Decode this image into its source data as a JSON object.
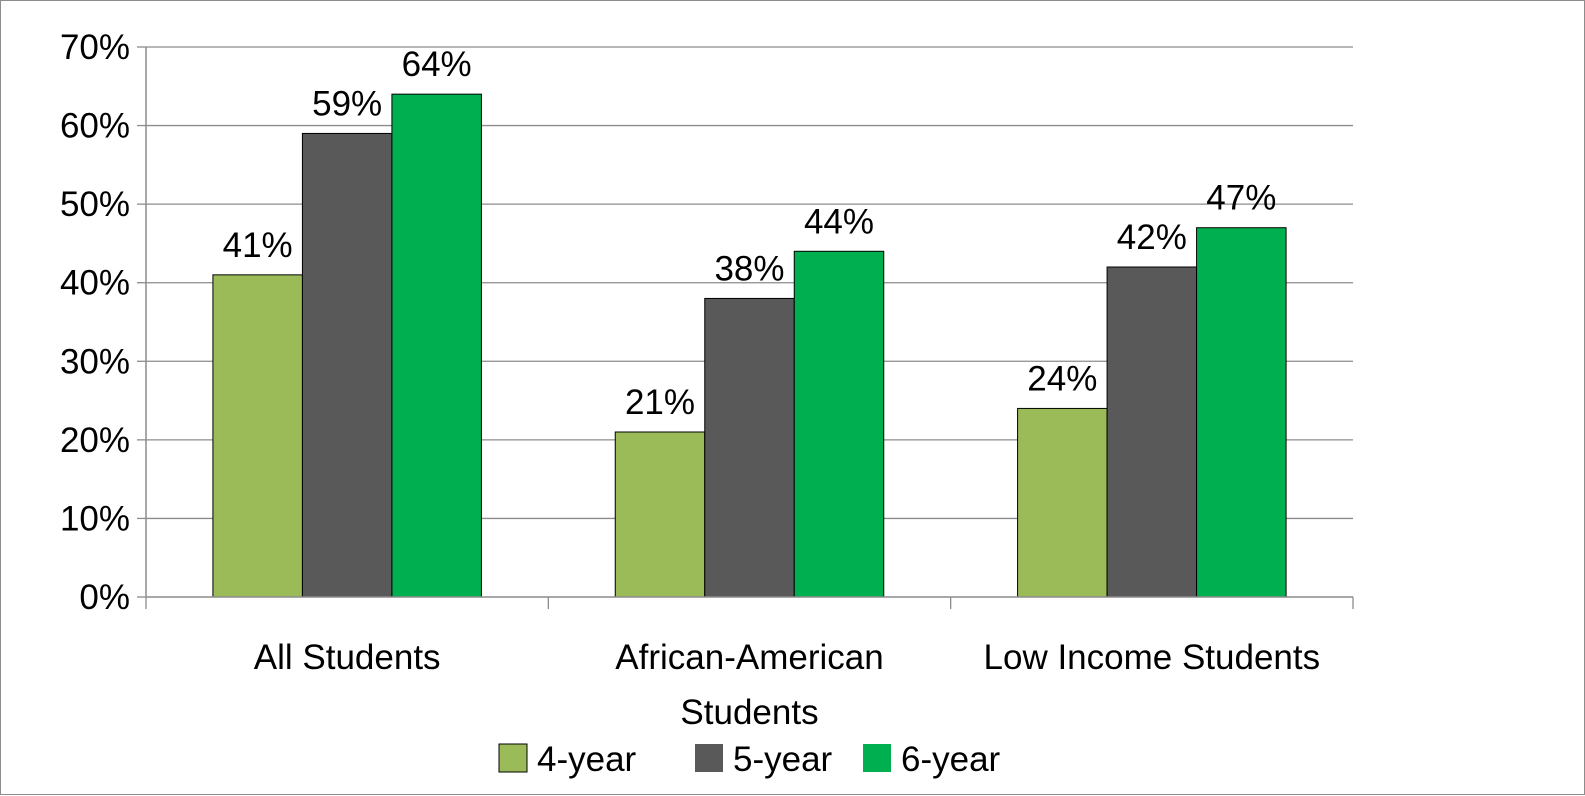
{
  "chart_data": {
    "type": "bar",
    "title": "",
    "xlabel": "",
    "ylabel": "",
    "categories": [
      [
        "All Students"
      ],
      [
        "African-American",
        "Students"
      ],
      [
        "Low Income Students"
      ]
    ],
    "series": [
      {
        "name": "4-year",
        "color": "#9bbb59",
        "values": [
          41,
          21,
          24
        ],
        "labels": [
          "41%",
          "21%",
          "24%"
        ]
      },
      {
        "name": "5-year",
        "color": "#595959",
        "values": [
          59,
          38,
          42
        ],
        "labels": [
          "59%",
          "38%",
          "42%"
        ]
      },
      {
        "name": "6-year",
        "color": "#00b050",
        "values": [
          64,
          44,
          47
        ],
        "labels": [
          "64%",
          "44%",
          "47%"
        ]
      }
    ],
    "ylim": [
      0,
      70
    ],
    "ytick_step": 10,
    "ytick_labels": [
      "0%",
      "10%",
      "20%",
      "30%",
      "40%",
      "50%",
      "60%",
      "70%"
    ],
    "grid": true,
    "legend_position": "bottom"
  }
}
